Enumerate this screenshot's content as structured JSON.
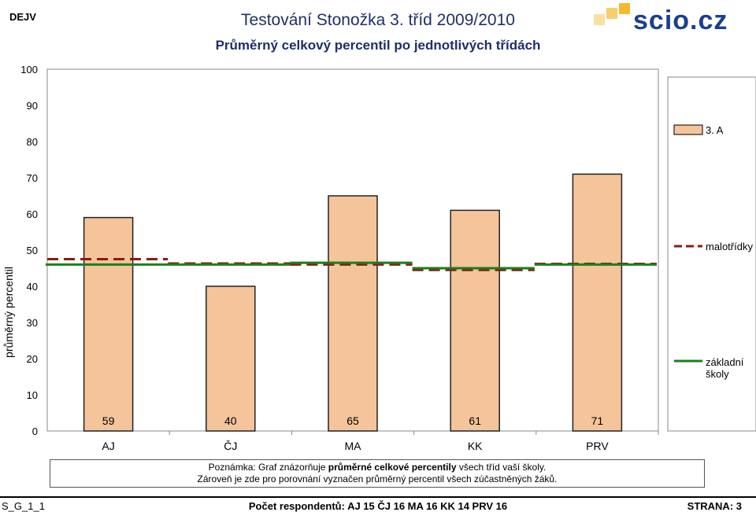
{
  "header": {
    "corner_label": "DEJV",
    "title": "Testování Stonožka 3. tříd 2009/2010",
    "logo_text": "scio.cz"
  },
  "chart_data": {
    "type": "bar",
    "title": "Průměrný celkový percentil po jednotlivých třídách",
    "ylabel": "průměrný percentil",
    "xlabel": "",
    "ylim": [
      0,
      100
    ],
    "yticks": [
      0,
      10,
      20,
      30,
      40,
      50,
      60,
      70,
      80,
      90,
      100
    ],
    "categories": [
      "AJ",
      "ČJ",
      "MA",
      "KK",
      "PRV"
    ],
    "series": [
      {
        "name": "3. A",
        "values": [
          59,
          40,
          65,
          61,
          71
        ],
        "data_labels": [
          "59",
          "40",
          "65",
          "61",
          "71"
        ],
        "color": "#f4c49a"
      }
    ],
    "reference_lines": [
      {
        "name": "malotřídky",
        "style": "dashed",
        "color": "#8b1a1a",
        "values": [
          47.5,
          46.3,
          46.0,
          44.5,
          46.2
        ]
      },
      {
        "name": "základní školy",
        "style": "solid",
        "color": "#1a7f1a",
        "values": [
          46.0,
          46.0,
          46.5,
          45.0,
          46.0
        ]
      }
    ],
    "legend_position": "right",
    "grid": false
  },
  "note": {
    "line1_prefix": "Poznámka: Graf znázorňuje ",
    "line1_bold": "průměrné celkové percentily",
    "line1_suffix": " všech tříd vaší školy.",
    "line2": "Zároveň je zde pro porovnání vyznačen průměrný percentil všech zúčastněných žáků."
  },
  "footer": {
    "left": "S_G_1_1",
    "respondents": "Počet respondentů: AJ 15  ČJ 16  MA 16  KK 14  PRV 16",
    "page": "STRANA: 3"
  },
  "colors": {
    "title": "#1e2f6b",
    "bar": "#f4c49a",
    "logo_blue": "#1a3f8f",
    "logo_yellow": "#f5b82e"
  }
}
